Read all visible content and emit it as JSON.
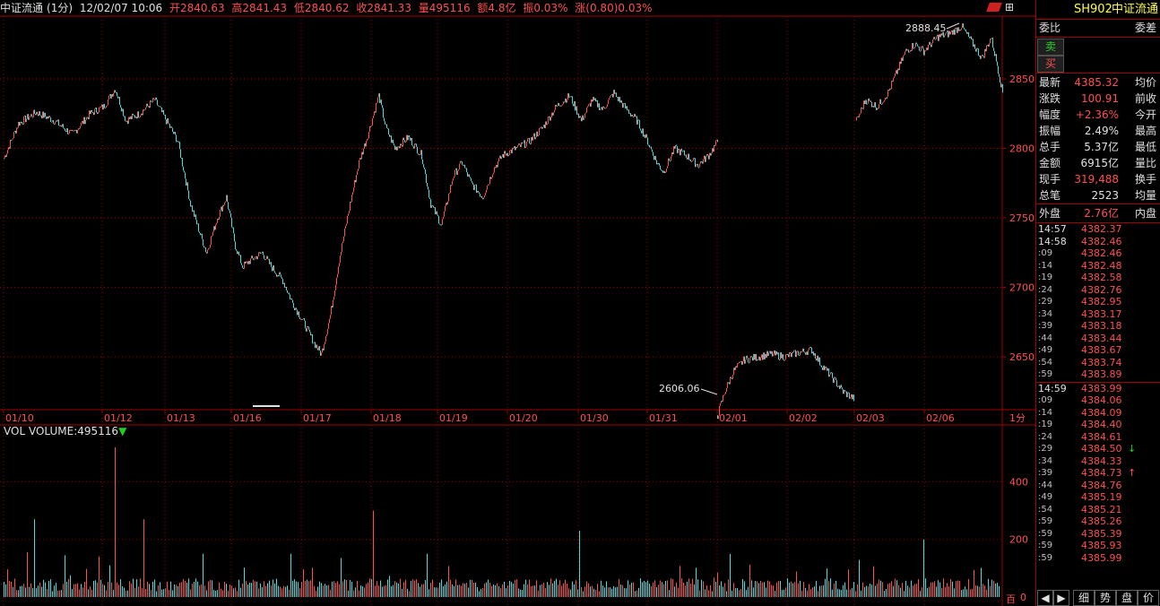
{
  "topbar": {
    "name": "中证流通",
    "period": "(1分)",
    "datetime": "12/02/07 10:06",
    "open": "开2840.63",
    "high": "高2841.43",
    "low": "低2840.62",
    "close": "收2841.33",
    "volume": "量495116",
    "amount": "额4.8亿",
    "amplitude": "振0.03%",
    "change": "涨(0.80)0.03%"
  },
  "colors": {
    "background": "#000000",
    "up": "#ff5050",
    "down": "#40e0e0",
    "grid": "#a00000",
    "accent": "#ffff40"
  },
  "main_chart": {
    "y_ticks": [
      "2850",
      "2800",
      "2750",
      "2700",
      "2650"
    ],
    "x_dates": [
      "01/10",
      "01/12",
      "01/13",
      "01/16",
      "01/17",
      "01/18",
      "01/19",
      "01/20",
      "01/30",
      "01/31",
      "02/01",
      "02/02",
      "02/03",
      "02/06"
    ],
    "period_label": "1分",
    "high_marker": "2888.45",
    "low_marker": "2606.06"
  },
  "volume_chart": {
    "label": "VOL VOLUME:",
    "value": "495116",
    "arrow": "▼",
    "y_ticks": [
      "400",
      "200",
      "0"
    ],
    "unit": "百"
  },
  "right_panel": {
    "code": "SH902",
    "name": "中证流通",
    "weibi_label": "委比",
    "weicha_label": "委差",
    "sell_label": "卖",
    "buy_label": "买",
    "stats": [
      {
        "label": "最新",
        "value": "4385.32",
        "color": "#ff5050",
        "label2": "均价"
      },
      {
        "label": "涨跌",
        "value": "100.91",
        "color": "#ff5050",
        "label2": "前收"
      },
      {
        "label": "幅度",
        "value": "+2.36%",
        "color": "#ff5050",
        "label2": "今开"
      },
      {
        "label": "振幅",
        "value": "2.49%",
        "color": "#e0e0e0",
        "label2": "最高"
      },
      {
        "label": "总手",
        "value": "5.37亿",
        "color": "#e0e0e0",
        "label2": "最低"
      },
      {
        "label": "金额",
        "value": "6915亿",
        "color": "#e0e0e0",
        "label2": "量比"
      },
      {
        "label": "现手",
        "value": "319,488",
        "color": "#ff5050",
        "label2": "换手"
      },
      {
        "label": "总笔",
        "value": "2523",
        "color": "#e0e0e0",
        "label2": "均量"
      }
    ],
    "outer_label": "外盘",
    "outer_value": "2.76亿",
    "inner_label": "内盘",
    "ticks": [
      {
        "t": "14:57",
        "p": "4382.37",
        "a": ""
      },
      {
        "t": "14:58",
        "p": "4382.46",
        "a": ""
      },
      {
        "t": ":09",
        "p": "4382.46",
        "a": ""
      },
      {
        "t": ":14",
        "p": "4382.48",
        "a": ""
      },
      {
        "t": ":19",
        "p": "4382.58",
        "a": ""
      },
      {
        "t": ":24",
        "p": "4382.76",
        "a": ""
      },
      {
        "t": ":29",
        "p": "4382.95",
        "a": ""
      },
      {
        "t": ":34",
        "p": "4383.17",
        "a": ""
      },
      {
        "t": ":39",
        "p": "4383.18",
        "a": ""
      },
      {
        "t": ":44",
        "p": "4383.44",
        "a": ""
      },
      {
        "t": ":49",
        "p": "4383.67",
        "a": ""
      },
      {
        "t": ":54",
        "p": "4383.74",
        "a": ""
      },
      {
        "t": ":59",
        "p": "4383.89",
        "a": ""
      },
      {
        "t": "14:59",
        "p": "4383.99",
        "a": ""
      },
      {
        "t": ":09",
        "p": "4384.06",
        "a": ""
      },
      {
        "t": ":14",
        "p": "4384.09",
        "a": ""
      },
      {
        "t": ":19",
        "p": "4384.40",
        "a": ""
      },
      {
        "t": ":24",
        "p": "4384.61",
        "a": ""
      },
      {
        "t": ":29",
        "p": "4384.50",
        "a": "↓"
      },
      {
        "t": ":34",
        "p": "4384.33",
        "a": ""
      },
      {
        "t": ":39",
        "p": "4384.73",
        "a": "↑"
      },
      {
        "t": ":44",
        "p": "4384.76",
        "a": ""
      },
      {
        "t": ":49",
        "p": "4385.19",
        "a": ""
      },
      {
        "t": ":54",
        "p": "4385.21",
        "a": ""
      },
      {
        "t": ":59",
        "p": "4385.26",
        "a": ""
      },
      {
        "t": ":59",
        "p": "4385.39",
        "a": ""
      },
      {
        "t": ":59",
        "p": "4385.93",
        "a": ""
      },
      {
        "t": ":59",
        "p": "4385.99",
        "a": ""
      }
    ],
    "tabs": [
      "细",
      "势",
      "盘",
      "价"
    ]
  }
}
